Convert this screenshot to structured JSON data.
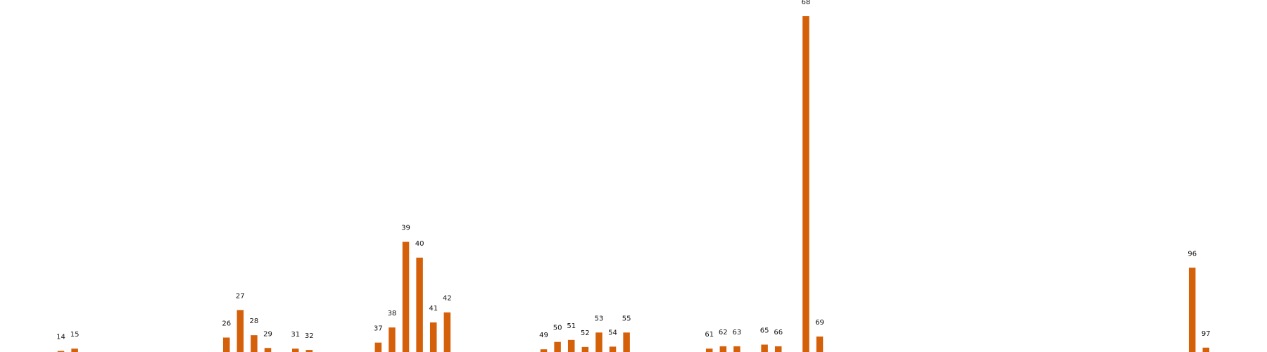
{
  "chart_data": {
    "type": "bar",
    "title": "",
    "xlabel": "",
    "ylabel": "",
    "ylim": [
      0,
      1
    ],
    "grid": false,
    "legend": "none",
    "bar_color": "#d4600a",
    "points": [
      {
        "label": "14",
        "value": 0.002
      },
      {
        "label": "15",
        "value": 0.01
      },
      {
        "label": "26",
        "value": 0.043
      },
      {
        "label": "27",
        "value": 0.125
      },
      {
        "label": "28",
        "value": 0.05
      },
      {
        "label": "29",
        "value": 0.012
      },
      {
        "label": "31",
        "value": 0.01
      },
      {
        "label": "32",
        "value": 0.006
      },
      {
        "label": "37",
        "value": 0.028
      },
      {
        "label": "38",
        "value": 0.073
      },
      {
        "label": "39",
        "value": 0.328
      },
      {
        "label": "40",
        "value": 0.281
      },
      {
        "label": "41",
        "value": 0.088
      },
      {
        "label": "42",
        "value": 0.118
      },
      {
        "label": "49",
        "value": 0.008
      },
      {
        "label": "50",
        "value": 0.03
      },
      {
        "label": "51",
        "value": 0.036
      },
      {
        "label": "52",
        "value": 0.015
      },
      {
        "label": "53",
        "value": 0.058
      },
      {
        "label": "54",
        "value": 0.016
      },
      {
        "label": "55",
        "value": 0.058
      },
      {
        "label": "61",
        "value": 0.01
      },
      {
        "label": "62",
        "value": 0.017
      },
      {
        "label": "63",
        "value": 0.017
      },
      {
        "label": "65",
        "value": 0.022
      },
      {
        "label": "66",
        "value": 0.017
      },
      {
        "label": "68",
        "value": 1.0
      },
      {
        "label": "69",
        "value": 0.046
      },
      {
        "label": "96",
        "value": 0.251
      },
      {
        "label": "97",
        "value": 0.013
      }
    ]
  }
}
